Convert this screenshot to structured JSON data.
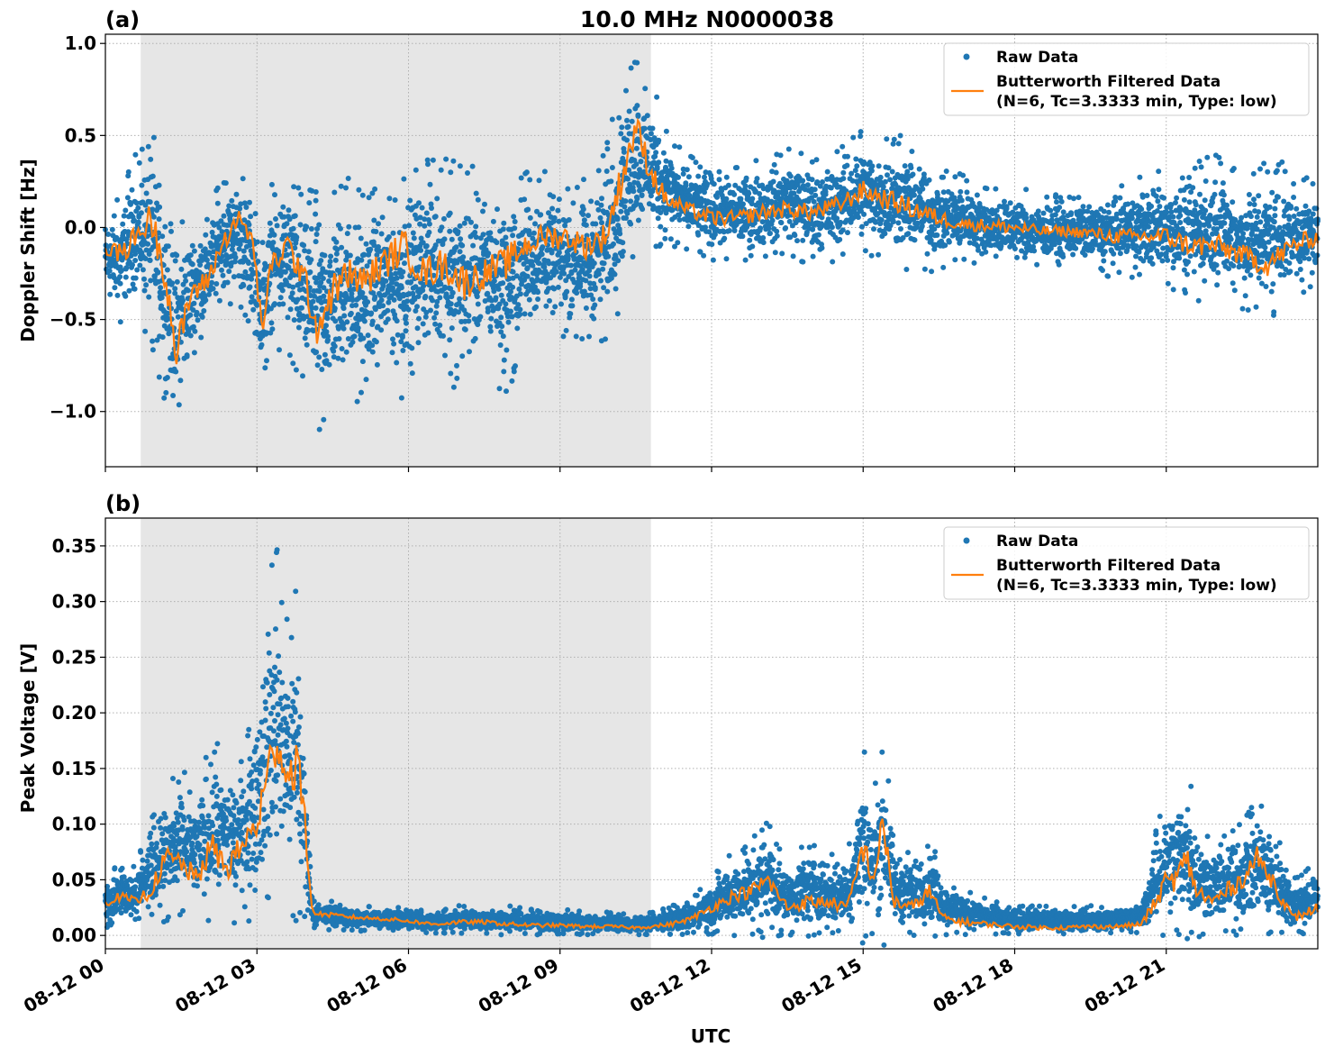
{
  "figure": {
    "title": "10.0 MHz N0000038",
    "xlabel": "UTC",
    "colors": {
      "raw": "#1f77b4",
      "filtered": "#ff7f0e",
      "shade": "#e6e6e6",
      "grid": "#b0b0b0"
    }
  },
  "chart_data": [
    {
      "type": "scatter",
      "panel_label": "(a)",
      "ylabel": "Doppler Shift [Hz]",
      "xlim_hours": [
        0,
        24
      ],
      "ylim": [
        -1.3,
        1.05
      ],
      "x_ticks": [
        {
          "hour": 0,
          "label": "08-12 00"
        },
        {
          "hour": 3,
          "label": "08-12 03"
        },
        {
          "hour": 6,
          "label": "08-12 06"
        },
        {
          "hour": 9,
          "label": "08-12 09"
        },
        {
          "hour": 12,
          "label": "08-12 12"
        },
        {
          "hour": 15,
          "label": "08-12 15"
        },
        {
          "hour": 18,
          "label": "08-12 18"
        },
        {
          "hour": 21,
          "label": "08-12 21"
        }
      ],
      "y_ticks": [
        {
          "value": 1.0,
          "label": "1.0"
        },
        {
          "value": 0.5,
          "label": "0.5"
        },
        {
          "value": 0.0,
          "label": "0.0"
        },
        {
          "value": -0.5,
          "label": "−0.5"
        },
        {
          "value": -1.0,
          "label": "−1.0"
        }
      ],
      "grid": true,
      "shaded_region_hours": [
        0.7,
        10.8
      ],
      "legend": {
        "location": "upper right",
        "entries": [
          {
            "kind": "marker",
            "label": "Raw Data"
          },
          {
            "kind": "line",
            "label": "Butterworth Filtered Data",
            "label2": "(N=6, Tc=3.3333 min, Type: low)"
          }
        ]
      },
      "series": [
        {
          "name": "Raw Data",
          "envelope": {
            "x_hours": [
              0,
              0.3,
              0.6,
              0.9,
              1.2,
              1.4,
              1.7,
              2.0,
              2.3,
              2.6,
              2.9,
              3.1,
              3.3,
              3.6,
              3.9,
              4.2,
              4.5,
              4.8,
              5.1,
              5.5,
              5.9,
              6.3,
              6.7,
              7.1,
              7.5,
              7.9,
              8.3,
              8.7,
              9.1,
              9.5,
              9.9,
              10.2,
              10.5,
              10.8,
              11.1,
              11.5,
              12.0,
              12.5,
              13.0,
              13.5,
              14.0,
              14.5,
              15.0,
              15.5,
              16.0,
              16.5,
              17.0,
              17.5,
              18.0,
              18.5,
              19.0,
              19.5,
              20.0,
              20.5,
              21.0,
              21.5,
              22.0,
              22.5,
              23.0,
              23.5,
              24.0
            ],
            "low": [
              -0.45,
              -0.5,
              -0.4,
              -0.55,
              -0.9,
              -1.15,
              -0.75,
              -0.6,
              -0.4,
              -0.35,
              -0.55,
              -0.8,
              -0.6,
              -0.65,
              -0.8,
              -1.05,
              -0.95,
              -0.85,
              -0.9,
              -0.8,
              -0.85,
              -0.7,
              -0.75,
              -0.85,
              -0.7,
              -0.85,
              -0.6,
              -0.55,
              -0.55,
              -0.6,
              -0.55,
              -0.35,
              -0.1,
              -0.1,
              -0.05,
              -0.1,
              -0.15,
              -0.15,
              -0.15,
              -0.1,
              -0.2,
              -0.15,
              -0.1,
              -0.15,
              -0.2,
              -0.2,
              -0.15,
              -0.2,
              -0.2,
              -0.2,
              -0.2,
              -0.2,
              -0.25,
              -0.25,
              -0.3,
              -0.35,
              -0.35,
              -0.4,
              -0.45,
              -0.35,
              -0.3
            ],
            "high": [
              0.1,
              0.15,
              0.35,
              0.45,
              0.25,
              0.0,
              0.05,
              0.1,
              0.2,
              0.3,
              0.2,
              -0.15,
              0.2,
              0.3,
              0.1,
              0.15,
              0.15,
              0.2,
              0.1,
              0.2,
              0.25,
              0.3,
              0.3,
              0.25,
              0.25,
              0.2,
              0.25,
              0.25,
              0.2,
              0.2,
              0.35,
              0.75,
              0.9,
              0.75,
              0.5,
              0.35,
              0.35,
              0.3,
              0.35,
              0.4,
              0.35,
              0.4,
              0.5,
              0.45,
              0.45,
              0.3,
              0.25,
              0.2,
              0.2,
              0.15,
              0.15,
              0.15,
              0.2,
              0.25,
              0.3,
              0.3,
              0.35,
              0.25,
              0.3,
              0.3,
              0.2
            ]
          }
        },
        {
          "name": "Butterworth Filtered Data",
          "x_hours": [
            0,
            0.3,
            0.6,
            0.9,
            1.2,
            1.4,
            1.7,
            2.0,
            2.3,
            2.6,
            2.9,
            3.1,
            3.3,
            3.6,
            3.9,
            4.2,
            4.5,
            4.8,
            5.1,
            5.5,
            5.9,
            6.3,
            6.7,
            7.1,
            7.5,
            7.9,
            8.3,
            8.7,
            9.1,
            9.5,
            9.9,
            10.2,
            10.5,
            10.8,
            11.1,
            11.5,
            12.0,
            12.5,
            13.0,
            13.5,
            14.0,
            14.5,
            15.0,
            15.5,
            16.0,
            16.5,
            17.0,
            17.5,
            18.0,
            18.5,
            19.0,
            19.5,
            20.0,
            20.5,
            21.0,
            21.5,
            22.0,
            22.5,
            23.0,
            23.5,
            24.0
          ],
          "values": [
            -0.1,
            -0.15,
            -0.05,
            0.05,
            -0.25,
            -0.7,
            -0.35,
            -0.3,
            -0.1,
            0.05,
            -0.05,
            -0.55,
            -0.2,
            -0.1,
            -0.25,
            -0.55,
            -0.35,
            -0.25,
            -0.3,
            -0.2,
            -0.1,
            -0.25,
            -0.2,
            -0.3,
            -0.25,
            -0.2,
            -0.1,
            -0.05,
            -0.05,
            -0.1,
            -0.05,
            0.25,
            0.55,
            0.3,
            0.15,
            0.1,
            0.05,
            0.05,
            0.08,
            0.1,
            0.08,
            0.12,
            0.2,
            0.15,
            0.1,
            0.05,
            0.02,
            0.01,
            0.0,
            -0.02,
            -0.02,
            -0.03,
            -0.05,
            -0.05,
            -0.05,
            -0.1,
            -0.1,
            -0.15,
            -0.2,
            -0.1,
            -0.05
          ]
        }
      ]
    },
    {
      "type": "scatter",
      "panel_label": "(b)",
      "ylabel": "Peak Voltage [V]",
      "xlim_hours": [
        0,
        24
      ],
      "ylim": [
        -0.012,
        0.375
      ],
      "x_ticks": [
        {
          "hour": 0,
          "label": "08-12 00"
        },
        {
          "hour": 3,
          "label": "08-12 03"
        },
        {
          "hour": 6,
          "label": "08-12 06"
        },
        {
          "hour": 9,
          "label": "08-12 09"
        },
        {
          "hour": 12,
          "label": "08-12 12"
        },
        {
          "hour": 15,
          "label": "08-12 15"
        },
        {
          "hour": 18,
          "label": "08-12 18"
        },
        {
          "hour": 21,
          "label": "08-12 21"
        }
      ],
      "y_ticks": [
        {
          "value": 0.35,
          "label": "0.35"
        },
        {
          "value": 0.3,
          "label": "0.30"
        },
        {
          "value": 0.25,
          "label": "0.25"
        },
        {
          "value": 0.2,
          "label": "0.20"
        },
        {
          "value": 0.15,
          "label": "0.15"
        },
        {
          "value": 0.1,
          "label": "0.10"
        },
        {
          "value": 0.05,
          "label": "0.05"
        },
        {
          "value": 0.0,
          "label": "0.00"
        }
      ],
      "grid": true,
      "shaded_region_hours": [
        0.7,
        10.8
      ],
      "legend": {
        "location": "upper right",
        "entries": [
          {
            "kind": "marker",
            "label": "Raw Data"
          },
          {
            "kind": "line",
            "label": "Butterworth Filtered Data",
            "label2": "(N=6, Tc=3.3333 min, Type: low)"
          }
        ]
      },
      "series": [
        {
          "name": "Raw Data",
          "envelope": {
            "x_hours": [
              0,
              0.3,
              0.6,
              0.9,
              1.2,
              1.5,
              1.8,
              2.1,
              2.4,
              2.7,
              3.0,
              3.2,
              3.4,
              3.6,
              3.8,
              3.95,
              4.1,
              4.5,
              5.0,
              5.5,
              6.0,
              6.5,
              7.0,
              7.5,
              8.0,
              8.5,
              9.0,
              9.5,
              10.0,
              10.5,
              10.8,
              11.2,
              11.6,
              12.0,
              12.4,
              12.8,
              13.1,
              13.5,
              13.9,
              14.3,
              14.7,
              15.0,
              15.2,
              15.4,
              15.6,
              16.0,
              16.3,
              16.6,
              17.0,
              17.5,
              18.0,
              18.5,
              19.0,
              19.5,
              20.0,
              20.5,
              20.8,
              21.0,
              21.2,
              21.4,
              21.6,
              21.9,
              22.2,
              22.5,
              22.8,
              23.1,
              23.5,
              24.0
            ],
            "low": [
              0.01,
              0.015,
              0.015,
              0.02,
              0.02,
              0.02,
              0.02,
              0.02,
              0.02,
              0.02,
              0.03,
              0.04,
              0.05,
              0.04,
              0.03,
              0.02,
              0.008,
              0.006,
              0.005,
              0.005,
              0.004,
              0.003,
              0.003,
              0.003,
              0.002,
              0.002,
              0.002,
              0.002,
              0.002,
              0.002,
              0.002,
              0.002,
              0.003,
              0.004,
              0.004,
              0.005,
              0.005,
              0.005,
              0.005,
              0.005,
              0.005,
              0.005,
              0.005,
              0.005,
              0.005,
              0.004,
              0.004,
              0.003,
              0.003,
              0.003,
              0.002,
              0.002,
              0.002,
              0.002,
              0.003,
              0.004,
              0.006,
              0.008,
              0.008,
              0.006,
              0.006,
              0.006,
              0.006,
              0.006,
              0.006,
              0.005,
              0.005,
              0.006
            ],
            "high": [
              0.055,
              0.06,
              0.06,
              0.1,
              0.13,
              0.14,
              0.13,
              0.17,
              0.16,
              0.15,
              0.22,
              0.3,
              0.33,
              0.28,
              0.3,
              0.18,
              0.03,
              0.03,
              0.025,
              0.025,
              0.025,
              0.02,
              0.025,
              0.025,
              0.025,
              0.022,
              0.022,
              0.02,
              0.02,
              0.018,
              0.02,
              0.025,
              0.03,
              0.05,
              0.07,
              0.08,
              0.1,
              0.06,
              0.08,
              0.07,
              0.07,
              0.17,
              0.11,
              0.19,
              0.08,
              0.07,
              0.09,
              0.05,
              0.04,
              0.03,
              0.025,
              0.025,
              0.025,
              0.025,
              0.025,
              0.03,
              0.09,
              0.12,
              0.13,
              0.15,
              0.1,
              0.08,
              0.09,
              0.1,
              0.12,
              0.1,
              0.05,
              0.06
            ]
          }
        },
        {
          "name": "Butterworth Filtered Data",
          "x_hours": [
            0,
            0.3,
            0.6,
            0.9,
            1.2,
            1.5,
            1.8,
            2.1,
            2.4,
            2.7,
            3.0,
            3.2,
            3.4,
            3.6,
            3.8,
            3.95,
            4.1,
            4.5,
            5.0,
            5.5,
            6.0,
            6.5,
            7.0,
            7.5,
            8.0,
            8.5,
            9.0,
            9.5,
            10.0,
            10.5,
            10.8,
            11.2,
            11.6,
            12.0,
            12.4,
            12.8,
            13.1,
            13.5,
            13.9,
            14.3,
            14.7,
            15.0,
            15.2,
            15.4,
            15.6,
            16.0,
            16.3,
            16.6,
            17.0,
            17.5,
            18.0,
            18.5,
            19.0,
            19.5,
            20.0,
            20.5,
            20.8,
            21.0,
            21.2,
            21.4,
            21.6,
            21.9,
            22.2,
            22.5,
            22.8,
            23.1,
            23.5,
            24.0
          ],
          "values": [
            0.03,
            0.035,
            0.03,
            0.04,
            0.07,
            0.065,
            0.05,
            0.08,
            0.06,
            0.08,
            0.1,
            0.14,
            0.18,
            0.14,
            0.16,
            0.1,
            0.02,
            0.018,
            0.016,
            0.015,
            0.013,
            0.01,
            0.012,
            0.012,
            0.01,
            0.009,
            0.009,
            0.008,
            0.008,
            0.007,
            0.008,
            0.01,
            0.015,
            0.025,
            0.035,
            0.04,
            0.05,
            0.025,
            0.03,
            0.03,
            0.025,
            0.08,
            0.05,
            0.1,
            0.03,
            0.025,
            0.04,
            0.015,
            0.012,
            0.01,
            0.008,
            0.007,
            0.007,
            0.008,
            0.008,
            0.01,
            0.03,
            0.05,
            0.05,
            0.07,
            0.04,
            0.03,
            0.04,
            0.05,
            0.07,
            0.05,
            0.015,
            0.025
          ]
        }
      ]
    }
  ]
}
